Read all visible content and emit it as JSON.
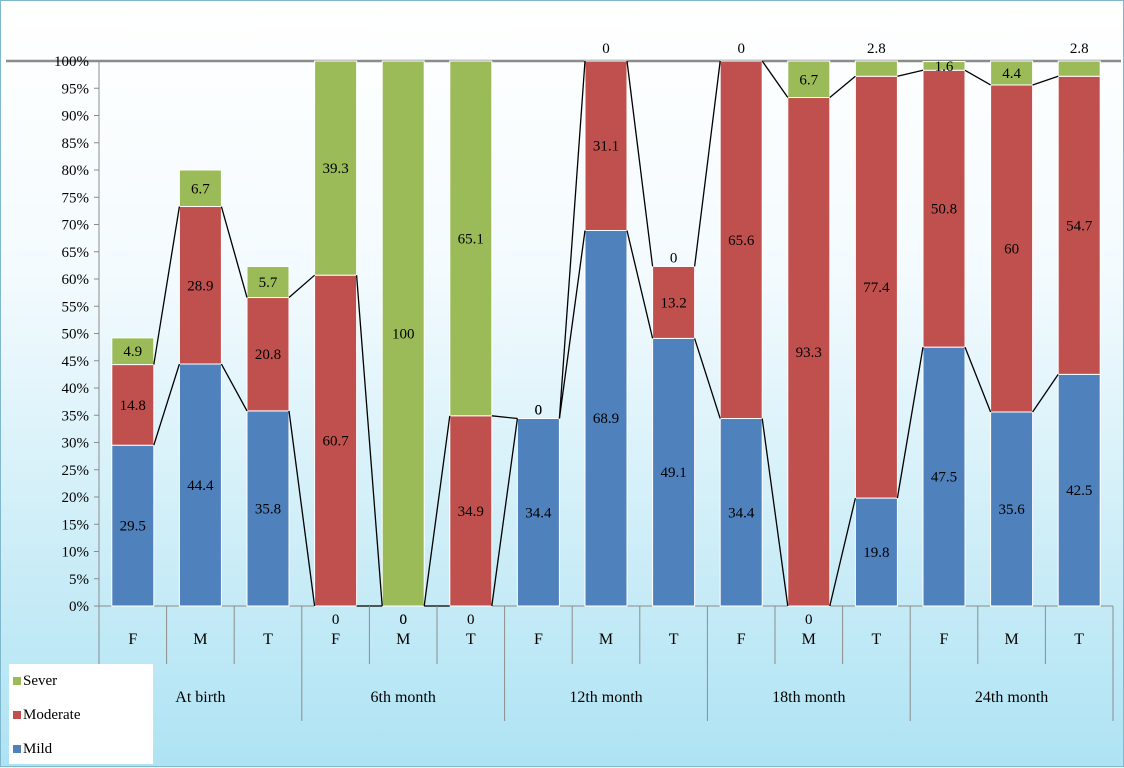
{
  "chart_data": {
    "type": "bar",
    "stacked": true,
    "percent_stacked": true,
    "groups": [
      "At birth",
      "6th month",
      "12th month",
      "18th month",
      "24th month"
    ],
    "subcategories": [
      "F",
      "M",
      "T"
    ],
    "categories": [
      "F",
      "M",
      "T",
      "F",
      "M",
      "T",
      "F",
      "M",
      "T",
      "F",
      "M",
      "T",
      "F",
      "M",
      "T"
    ],
    "series": [
      {
        "name": "Mild",
        "color": "#4f81bd",
        "values": [
          29.5,
          44.4,
          35.8,
          0,
          0,
          0,
          34.4,
          68.9,
          49.1,
          34.4,
          0,
          19.8,
          47.5,
          35.6,
          42.5
        ]
      },
      {
        "name": "Moderate",
        "color": "#c0504d",
        "values": [
          14.8,
          28.9,
          20.8,
          60.7,
          0,
          34.9,
          0,
          31.1,
          13.2,
          65.6,
          93.3,
          77.4,
          50.8,
          60,
          54.7
        ]
      },
      {
        "name": "Sever",
        "color": "#9bbb59",
        "values": [
          4.9,
          6.7,
          5.7,
          39.3,
          100,
          65.1,
          0,
          0,
          0,
          0,
          6.7,
          2.8,
          1.6,
          4.4,
          2.8
        ]
      }
    ],
    "yticks": [
      "0%",
      "5%",
      "10%",
      "15%",
      "20%",
      "25%",
      "30%",
      "35%",
      "40%",
      "45%",
      "50%",
      "55%",
      "60%",
      "65%",
      "70%",
      "75%",
      "80%",
      "85%",
      "90%",
      "95%",
      "100%"
    ],
    "ylim": [
      0,
      100
    ],
    "title": "",
    "xlabel": "",
    "ylabel": "",
    "grid": false,
    "legend_position": "bottom-left",
    "legend_entries": [
      "Sever",
      "Moderate",
      "Mild"
    ],
    "series_lines": true
  }
}
